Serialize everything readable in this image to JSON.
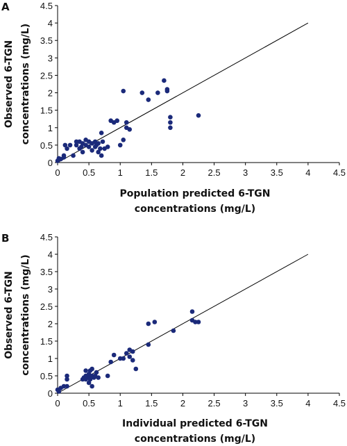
{
  "chart_data": [
    {
      "type": "scatter",
      "panel_label": "A",
      "xlabel_lines": [
        "Population predicted 6-TGN",
        "concentrations (mg/L)"
      ],
      "ylabel_lines": [
        "Observed 6-TGN",
        "concentrations (mg/L)"
      ],
      "xlim": [
        0,
        4.5
      ],
      "ylim": [
        0,
        4.5
      ],
      "xticks": [
        "0",
        "0.5",
        "1",
        "1.5",
        "2",
        "2.5",
        "3",
        "3.5",
        "4",
        "4.5"
      ],
      "yticks": [
        "0",
        "0.5",
        "1",
        "1.5",
        "2",
        "2.5",
        "3",
        "3.5",
        "4",
        "4.5"
      ],
      "identity_line": [
        [
          0,
          0
        ],
        [
          4,
          4
        ]
      ],
      "marker_color": "#1b2a7a",
      "points": [
        [
          0.05,
          0.1
        ],
        [
          0.1,
          0.15
        ],
        [
          0.1,
          0.2
        ],
        [
          0.15,
          0.4
        ],
        [
          0.12,
          0.5
        ],
        [
          0.2,
          0.5
        ],
        [
          0.25,
          0.2
        ],
        [
          0.3,
          0.5
        ],
        [
          0.3,
          0.6
        ],
        [
          0.35,
          0.4
        ],
        [
          0.35,
          0.6
        ],
        [
          0.38,
          0.45
        ],
        [
          0.4,
          0.55
        ],
        [
          0.4,
          0.3
        ],
        [
          0.45,
          0.5
        ],
        [
          0.45,
          0.65
        ],
        [
          0.5,
          0.45
        ],
        [
          0.5,
          0.6
        ],
        [
          0.55,
          0.35
        ],
        [
          0.55,
          0.55
        ],
        [
          0.6,
          0.45
        ],
        [
          0.6,
          0.6
        ],
        [
          0.62,
          0.5
        ],
        [
          0.65,
          0.3
        ],
        [
          0.65,
          0.55
        ],
        [
          0.68,
          0.4
        ],
        [
          0.7,
          0.2
        ],
        [
          0.7,
          0.85
        ],
        [
          0.72,
          0.6
        ],
        [
          0.75,
          0.4
        ],
        [
          0.8,
          0.45
        ],
        [
          0.85,
          1.2
        ],
        [
          0.9,
          1.15
        ],
        [
          0.95,
          1.2
        ],
        [
          1.0,
          0.5
        ],
        [
          1.05,
          2.05
        ],
        [
          1.1,
          1.0
        ],
        [
          1.1,
          1.15
        ],
        [
          1.15,
          0.95
        ],
        [
          1.05,
          0.65
        ],
        [
          1.35,
          2.0
        ],
        [
          1.45,
          1.8
        ],
        [
          1.6,
          2.0
        ],
        [
          1.7,
          2.35
        ],
        [
          1.75,
          2.05
        ],
        [
          1.75,
          2.1
        ],
        [
          1.8,
          1.3
        ],
        [
          1.8,
          1.15
        ],
        [
          1.8,
          1.0
        ],
        [
          2.25,
          1.35
        ],
        [
          0.0,
          0.05
        ],
        [
          0.02,
          0.12
        ]
      ]
    },
    {
      "type": "scatter",
      "panel_label": "B",
      "xlabel_lines": [
        "Individual predicted 6-TGN",
        "concentrations (mg/L)"
      ],
      "ylabel_lines": [
        "Observed 6-TGN",
        "concentrations (mg/L)"
      ],
      "xlim": [
        0,
        4.5
      ],
      "ylim": [
        0,
        4.5
      ],
      "xticks": [
        "0",
        "0.5",
        "1",
        "1.5",
        "2",
        "2.5",
        "3",
        "3.5",
        "4",
        "4.5"
      ],
      "yticks": [
        "0",
        "0.5",
        "1",
        "1.5",
        "2",
        "2.5",
        "3",
        "3.5",
        "4",
        "4.5"
      ],
      "identity_line": [
        [
          0,
          0
        ],
        [
          4,
          4
        ]
      ],
      "marker_color": "#1b2a7a",
      "points": [
        [
          0.02,
          0.05
        ],
        [
          0.05,
          0.15
        ],
        [
          0.1,
          0.2
        ],
        [
          0.15,
          0.2
        ],
        [
          0.15,
          0.4
        ],
        [
          0.15,
          0.5
        ],
        [
          0.4,
          0.4
        ],
        [
          0.42,
          0.45
        ],
        [
          0.45,
          0.4
        ],
        [
          0.45,
          0.5
        ],
        [
          0.45,
          0.65
        ],
        [
          0.5,
          0.3
        ],
        [
          0.5,
          0.45
        ],
        [
          0.5,
          0.55
        ],
        [
          0.52,
          0.65
        ],
        [
          0.55,
          0.2
        ],
        [
          0.55,
          0.5
        ],
        [
          0.55,
          0.7
        ],
        [
          0.58,
          0.45
        ],
        [
          0.6,
          0.5
        ],
        [
          0.62,
          0.6
        ],
        [
          0.65,
          0.45
        ],
        [
          0.8,
          0.5
        ],
        [
          0.85,
          0.9
        ],
        [
          0.9,
          1.1
        ],
        [
          1.0,
          1.0
        ],
        [
          1.05,
          1.0
        ],
        [
          1.1,
          1.15
        ],
        [
          1.15,
          1.25
        ],
        [
          1.15,
          1.05
        ],
        [
          1.2,
          1.2
        ],
        [
          1.2,
          0.95
        ],
        [
          1.25,
          0.7
        ],
        [
          1.45,
          1.4
        ],
        [
          1.45,
          2.0
        ],
        [
          1.55,
          2.05
        ],
        [
          1.85,
          1.8
        ],
        [
          2.15,
          2.35
        ],
        [
          2.15,
          2.1
        ],
        [
          2.2,
          2.05
        ],
        [
          2.25,
          2.05
        ],
        [
          0.0,
          0.1
        ],
        [
          0.52,
          0.4
        ]
      ]
    }
  ]
}
